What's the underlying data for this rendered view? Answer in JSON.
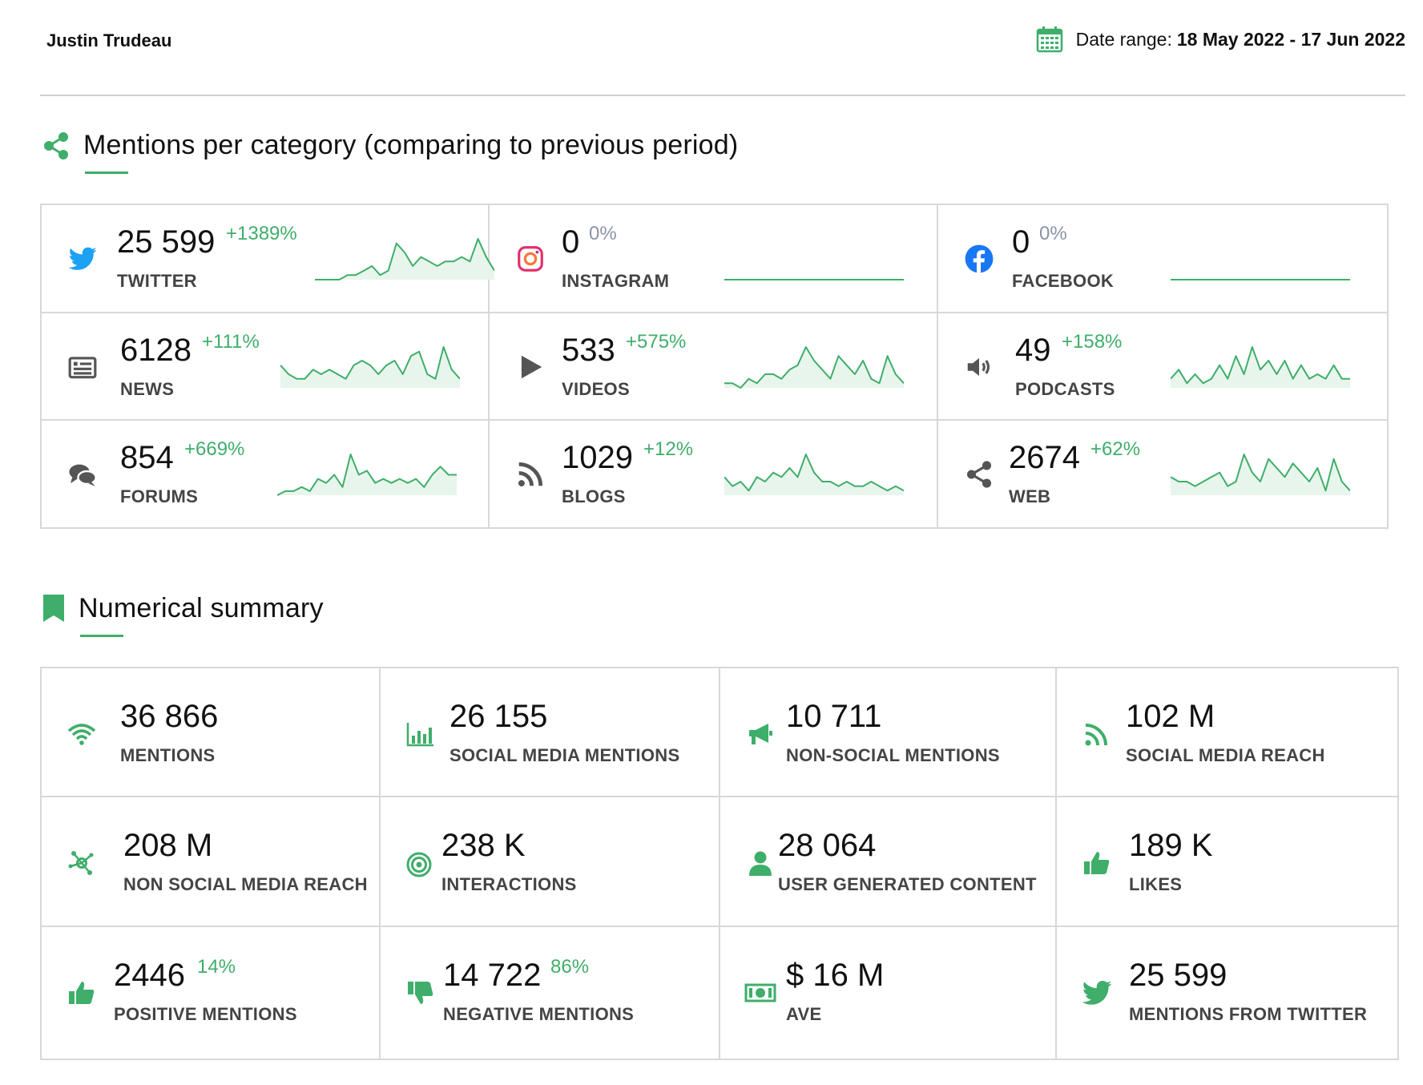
{
  "header": {
    "profile_name": "Justin Trudeau",
    "date_range_label": "Date range:",
    "date_range_value": "18 May 2022 - 17 Jun 2022"
  },
  "colors": {
    "accent": "#3fae6a",
    "positive": "#3fae6a",
    "neutral_change": "#8a93a6",
    "twitter": "#1da1f2",
    "facebook": "#1877f2",
    "instagram": "#e1306c",
    "icon_dark": "#555555"
  },
  "mentions_section": {
    "title": "Mentions per category (comparing to previous period)",
    "icon": "share-icon",
    "categories": [
      {
        "label": "TWITTER",
        "count": "25 599",
        "change": "+1389%",
        "change_type": "positive",
        "icon": "twitter-icon",
        "trend": [
          0,
          0,
          0,
          0,
          1,
          1,
          2,
          3,
          1,
          2,
          8,
          6,
          3,
          5,
          4,
          3,
          4,
          4,
          5,
          4,
          9,
          5,
          2
        ]
      },
      {
        "label": "INSTAGRAM",
        "count": "0",
        "change": "0%",
        "change_type": "neutral",
        "icon": "instagram-icon",
        "trend": [
          0,
          0,
          0,
          0,
          0,
          0,
          0,
          0,
          0,
          0,
          0,
          0,
          0,
          0,
          0,
          0,
          0,
          0,
          0,
          0,
          0,
          0,
          0
        ]
      },
      {
        "label": "FACEBOOK",
        "count": "0",
        "change": "0%",
        "change_type": "neutral",
        "icon": "facebook-icon",
        "trend": [
          0,
          0,
          0,
          0,
          0,
          0,
          0,
          0,
          0,
          0,
          0,
          0,
          0,
          0,
          0,
          0,
          0,
          0,
          0,
          0,
          0,
          0,
          0
        ]
      },
      {
        "label": "NEWS",
        "count": "6128",
        "change": "+111%",
        "change_type": "positive",
        "icon": "news-icon",
        "trend": [
          5,
          3,
          2,
          2,
          4,
          3,
          4,
          3,
          2,
          5,
          6,
          5,
          3,
          5,
          6,
          3,
          7,
          8,
          3,
          2,
          9,
          4,
          2
        ]
      },
      {
        "label": "VIDEOS",
        "count": "533",
        "change": "+575%",
        "change_type": "positive",
        "icon": "play-icon",
        "trend": [
          1,
          1,
          0,
          2,
          1,
          3,
          3,
          2,
          4,
          5,
          9,
          6,
          4,
          2,
          7,
          5,
          3,
          6,
          2,
          1,
          7,
          3,
          1
        ]
      },
      {
        "label": "PODCASTS",
        "count": "49",
        "change": "+158%",
        "change_type": "positive",
        "icon": "speaker-icon",
        "trend": [
          2,
          4,
          1,
          3,
          1,
          2,
          5,
          2,
          7,
          3,
          9,
          4,
          6,
          3,
          6,
          2,
          5,
          2,
          3,
          2,
          5,
          2,
          2
        ]
      },
      {
        "label": "FORUMS",
        "count": "854",
        "change": "+669%",
        "change_type": "positive",
        "icon": "chat-icon",
        "trend": [
          0,
          1,
          1,
          2,
          1,
          4,
          3,
          5,
          2,
          10,
          5,
          6,
          3,
          4,
          3,
          4,
          3,
          4,
          2,
          5,
          7,
          5,
          5
        ]
      },
      {
        "label": "BLOGS",
        "count": "1029",
        "change": "+12%",
        "change_type": "positive",
        "icon": "rss-icon",
        "trend": [
          4,
          2,
          3,
          1,
          4,
          3,
          5,
          4,
          6,
          4,
          9,
          5,
          3,
          3,
          2,
          3,
          2,
          2,
          3,
          2,
          1,
          2,
          1
        ]
      },
      {
        "label": "WEB",
        "count": "2674",
        "change": "+62%",
        "change_type": "positive",
        "icon": "share-icon",
        "trend": [
          4,
          3,
          3,
          2,
          3,
          4,
          5,
          2,
          3,
          9,
          5,
          3,
          8,
          6,
          4,
          7,
          5,
          3,
          6,
          1,
          8,
          3,
          1
        ]
      }
    ]
  },
  "summary_section": {
    "title": "Numerical summary",
    "icon": "bookmark-icon",
    "items": [
      {
        "value": "36 866",
        "label": "MENTIONS",
        "icon": "wifi-icon",
        "pct": ""
      },
      {
        "value": "26 155",
        "label": "SOCIAL MEDIA MENTIONS",
        "icon": "bar-chart-icon",
        "pct": ""
      },
      {
        "value": "10 711",
        "label": "NON-SOCIAL MENTIONS",
        "icon": "megaphone-icon",
        "pct": ""
      },
      {
        "value": "102 M",
        "label": "SOCIAL MEDIA REACH",
        "icon": "rss-icon",
        "pct": ""
      },
      {
        "value": "208 M",
        "label": "NON SOCIAL MEDIA REACH",
        "icon": "network-icon",
        "pct": ""
      },
      {
        "value": "238 K",
        "label": "INTERACTIONS",
        "icon": "target-icon",
        "pct": ""
      },
      {
        "value": "28 064",
        "label": "USER GENERATED CONTENT",
        "icon": "user-icon",
        "pct": ""
      },
      {
        "value": "189 K",
        "label": "LIKES",
        "icon": "thumbs-up-icon",
        "pct": ""
      },
      {
        "value": "2446",
        "label": "POSITIVE MENTIONS",
        "icon": "thumbs-up-icon",
        "pct": "14%"
      },
      {
        "value": "14 722",
        "label": "NEGATIVE MENTIONS",
        "icon": "thumbs-down-icon",
        "pct": "86%"
      },
      {
        "value": "$ 16 M",
        "label": "AVE",
        "icon": "money-icon",
        "pct": ""
      },
      {
        "value": "25 599",
        "label": "MENTIONS FROM TWITTER",
        "icon": "twitter-icon",
        "pct": ""
      }
    ]
  }
}
